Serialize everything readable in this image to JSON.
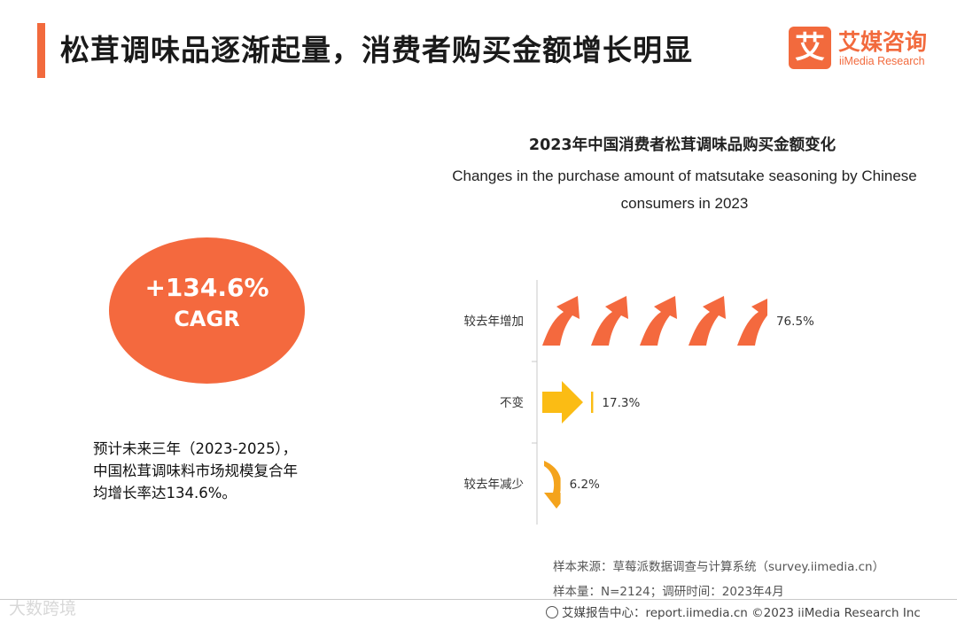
{
  "header": {
    "title": "松茸调味品逐渐起量，消费者购买金额增长明显",
    "brand_cn": "艾媒咨询",
    "brand_en": "iiMedia Research",
    "brand_mark": "艾"
  },
  "cagr": {
    "value": "+134.6%",
    "label": "CAGR"
  },
  "note": {
    "line1": "预计未来三年（2023-2025），",
    "line2": "中国松茸调味料市场规模复合年",
    "line3": "均增长率达134.6%。"
  },
  "chart_data": {
    "type": "bar",
    "title": "2023年中国消费者松茸调味品购买金额变化",
    "subtitle_line1": "Changes in the purchase amount of matsutake seasoning by Chinese",
    "subtitle_line2": "consumers in 2023",
    "categories": [
      "较去年增加",
      "不变",
      "较去年减少"
    ],
    "values": [
      76.5,
      17.3,
      6.2
    ],
    "value_labels": [
      "76.5%",
      "17.3%",
      "6.2%"
    ],
    "unit": "%",
    "colors": [
      "#f4693e",
      "#fbbc14",
      "#f4a31c"
    ],
    "xlim": [
      0,
      100
    ]
  },
  "source": {
    "line1": "样本来源：草莓派数据调查与计算系统（survey.iimedia.cn）",
    "line2": "样本量：N=2124；调研时间：2023年4月"
  },
  "footer": {
    "text": "艾媒报告中心：report.iimedia.cn  ©2023  iiMedia Research  Inc"
  },
  "watermark": "大数跨境",
  "icons": {
    "footer": "globe-icon"
  }
}
